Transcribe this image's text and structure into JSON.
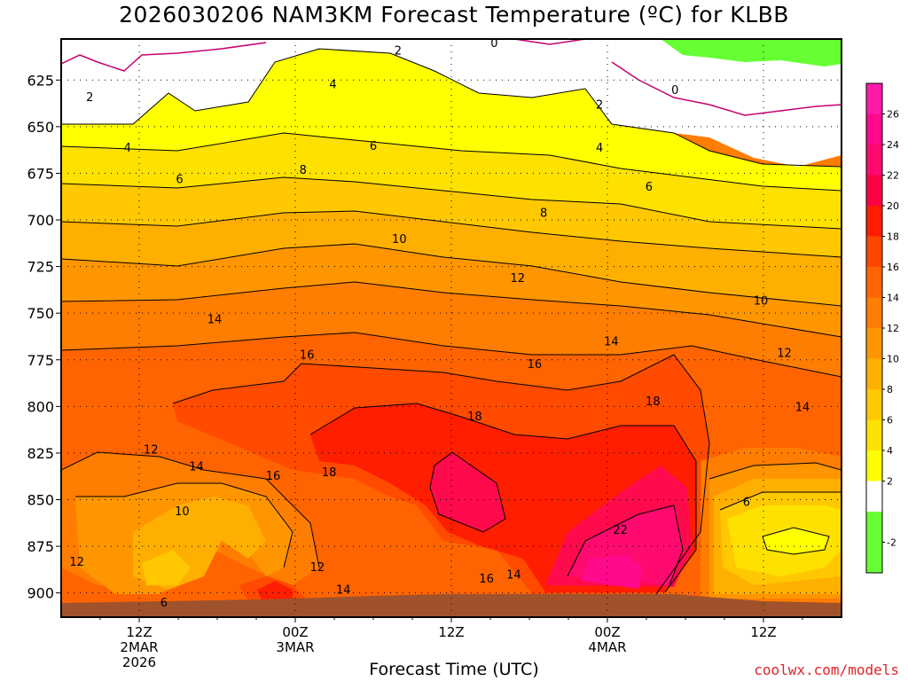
{
  "title": "2026030206 NAM3KM Forecast Temperature (ºC) for KLBB",
  "watermark": "coolwx.com/models",
  "chart_data": {
    "type": "heatmap",
    "title": "2026030206 NAM3KM Forecast Temperature (ºC) for KLBB",
    "xlabel": "Forecast Time (UTC)",
    "ylabel": "",
    "x_ticks": [
      {
        "hour": 12,
        "lines": [
          "12Z",
          "2MAR",
          "2026"
        ]
      },
      {
        "hour": 24,
        "lines": [
          "00Z",
          "3MAR"
        ]
      },
      {
        "hour": 36,
        "lines": [
          "12Z"
        ]
      },
      {
        "hour": 48,
        "lines": [
          "00Z",
          "4MAR"
        ]
      },
      {
        "hour": 60,
        "lines": [
          "12Z"
        ]
      }
    ],
    "xlim_hours": [
      6,
      66
    ],
    "y_ticks": [
      625,
      650,
      675,
      700,
      725,
      750,
      775,
      800,
      825,
      850,
      875,
      900
    ],
    "ylim": [
      603,
      913
    ],
    "y_inverted": true,
    "grid": true,
    "colorbar": {
      "ticks": [
        -2,
        2,
        4,
        6,
        8,
        10,
        12,
        14,
        16,
        18,
        20,
        22,
        24,
        26
      ],
      "bands": [
        {
          "min": -4,
          "max": 0,
          "color": "#66ff33"
        },
        {
          "min": 0,
          "max": 2,
          "color": "#ffffff"
        },
        {
          "min": 2,
          "max": 4,
          "color": "#ffff00"
        },
        {
          "min": 4,
          "max": 6,
          "color": "#ffe100"
        },
        {
          "min": 6,
          "max": 8,
          "color": "#ffc800"
        },
        {
          "min": 8,
          "max": 10,
          "color": "#ffaf00"
        },
        {
          "min": 10,
          "max": 12,
          "color": "#ff9600"
        },
        {
          "min": 12,
          "max": 14,
          "color": "#ff7d00"
        },
        {
          "min": 14,
          "max": 16,
          "color": "#ff6400"
        },
        {
          "min": 16,
          "max": 18,
          "color": "#ff4600"
        },
        {
          "min": 18,
          "max": 20,
          "color": "#ff1e00"
        },
        {
          "min": 20,
          "max": 22,
          "color": "#ff0044"
        },
        {
          "min": 22,
          "max": 24,
          "color": "#ff0a6e"
        },
        {
          "min": 24,
          "max": 26,
          "color": "#ff0a8c"
        },
        {
          "min": 26,
          "max": 28,
          "color": "#ff1aaa"
        }
      ]
    },
    "contour_labels": [
      {
        "t": 8.2,
        "p": 634,
        "label": "2"
      },
      {
        "t": 31.9,
        "p": 609,
        "label": "2"
      },
      {
        "t": 47.4,
        "p": 638,
        "label": "2"
      },
      {
        "t": 39.3,
        "p": 605,
        "label": "0"
      },
      {
        "t": 53.2,
        "p": 630,
        "label": "0"
      },
      {
        "t": 11.1,
        "p": 661,
        "label": "4"
      },
      {
        "t": 26.9,
        "p": 627,
        "label": "4"
      },
      {
        "t": 47.4,
        "p": 661,
        "label": "4"
      },
      {
        "t": 15.1,
        "p": 678,
        "label": "6"
      },
      {
        "t": 30.0,
        "p": 660,
        "label": "6"
      },
      {
        "t": 51.2,
        "p": 682,
        "label": "6"
      },
      {
        "t": 24.6,
        "p": 673,
        "label": "8"
      },
      {
        "t": 43.1,
        "p": 696,
        "label": "8"
      },
      {
        "t": 32.0,
        "p": 710,
        "label": "10"
      },
      {
        "t": 59.8,
        "p": 743,
        "label": "10"
      },
      {
        "t": 41.1,
        "p": 731,
        "label": "12"
      },
      {
        "t": 61.6,
        "p": 771,
        "label": "12"
      },
      {
        "t": 17.8,
        "p": 753,
        "label": "14"
      },
      {
        "t": 48.3,
        "p": 765,
        "label": "14"
      },
      {
        "t": 63.0,
        "p": 800,
        "label": "14"
      },
      {
        "t": 24.9,
        "p": 772,
        "label": "16"
      },
      {
        "t": 42.4,
        "p": 777,
        "label": "16"
      },
      {
        "t": 37.8,
        "p": 805,
        "label": "18"
      },
      {
        "t": 51.5,
        "p": 797,
        "label": "18"
      },
      {
        "t": 12.9,
        "p": 823,
        "label": "12"
      },
      {
        "t": 16.4,
        "p": 832,
        "label": "14"
      },
      {
        "t": 22.3,
        "p": 837,
        "label": "16"
      },
      {
        "t": 26.6,
        "p": 835,
        "label": "18"
      },
      {
        "t": 15.3,
        "p": 856,
        "label": "10"
      },
      {
        "t": 7.2,
        "p": 883,
        "label": "12"
      },
      {
        "t": 25.7,
        "p": 886,
        "label": "12"
      },
      {
        "t": 27.7,
        "p": 898,
        "label": "14"
      },
      {
        "t": 38.7,
        "p": 892,
        "label": "16"
      },
      {
        "t": 40.8,
        "p": 890,
        "label": "14"
      },
      {
        "t": 49.0,
        "p": 866,
        "label": "22"
      },
      {
        "t": 13.9,
        "p": 905,
        "label": "6"
      },
      {
        "t": 58.7,
        "p": 851,
        "label": "6"
      }
    ]
  }
}
